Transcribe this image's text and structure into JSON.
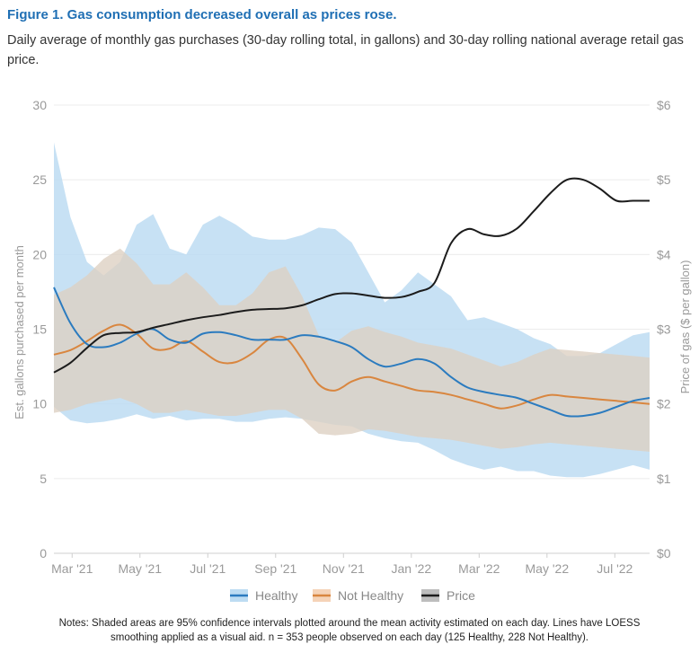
{
  "header": {
    "title": "Figure 1. Gas consumption decreased overall as prices rose.",
    "subtitle": "Daily average of monthly gas purchases (30-day rolling total, in gallons) and 30-day rolling national average retail gas price."
  },
  "notes": {
    "line1": "Notes: Shaded areas are 95% confidence intervals plotted around the mean activity estimated on each day. Lines have LOESS",
    "line2": "smoothing applied as a visual aid. n = 353 people observed on each day (125 Healthy, 228 Not Healthy)."
  },
  "chart_data": {
    "type": "line",
    "title": "Figure 1. Gas consumption decreased overall as prices rose.",
    "ylabel": "Est. gallons purchased per month",
    "y2label": "Price of gas ($ per gallon)",
    "ylim": [
      0,
      30
    ],
    "y2lim": [
      0,
      6
    ],
    "yticks": [
      "0",
      "5",
      "10",
      "15",
      "20",
      "25",
      "30"
    ],
    "y2ticks": [
      "$0",
      "$1",
      "$2",
      "$3",
      "$4",
      "$5",
      "$6"
    ],
    "xticks": [
      "Mar '21",
      "May '21",
      "Jul '21",
      "Sep '21",
      "Nov '21",
      "Jan '22",
      "Mar '22",
      "May '22",
      "Jul '22"
    ],
    "x_range_months": [
      0,
      18
    ],
    "grid": "horizontal",
    "legend_position": "bottom",
    "colors": {
      "healthy": "#2b7bbf",
      "not_healthy": "#d9863f",
      "price": "#1c1c1c",
      "healthy_band": "#bddcf2",
      "not_healthy_band": "#f5d3b8",
      "overlap_band": "#d2cfc8"
    },
    "series": [
      {
        "name": "Healthy",
        "axis": "left",
        "x": [
          0,
          0.5,
          1,
          1.5,
          2,
          2.5,
          3,
          3.5,
          4,
          4.5,
          5,
          5.5,
          6,
          6.5,
          7,
          7.5,
          8,
          8.5,
          9,
          9.5,
          10,
          10.5,
          11,
          11.5,
          12,
          12.5,
          13,
          13.5,
          14,
          14.5,
          15,
          15.5,
          16,
          16.5,
          17,
          17.5,
          18
        ],
        "values": [
          17.8,
          15.4,
          14.0,
          13.8,
          14.1,
          14.7,
          15.0,
          14.3,
          14.1,
          14.7,
          14.8,
          14.6,
          14.3,
          14.3,
          14.3,
          14.6,
          14.5,
          14.2,
          13.8,
          13.0,
          12.5,
          12.7,
          13.0,
          12.7,
          11.8,
          11.1,
          10.8,
          10.6,
          10.4,
          10.0,
          9.6,
          9.2,
          9.2,
          9.4,
          9.8,
          10.2,
          10.4
        ],
        "ci_lower": [
          9.8,
          8.9,
          8.7,
          8.8,
          9.0,
          9.3,
          9.0,
          9.2,
          8.9,
          9.0,
          9.0,
          8.8,
          8.8,
          9.0,
          9.1,
          9.0,
          8.8,
          8.6,
          8.5,
          8.0,
          7.7,
          7.5,
          7.4,
          6.9,
          6.3,
          5.9,
          5.6,
          5.8,
          5.5,
          5.5,
          5.2,
          5.1,
          5.1,
          5.3,
          5.6,
          5.9,
          5.6
        ],
        "ci_upper": [
          27.5,
          22.5,
          19.5,
          18.6,
          19.5,
          22.0,
          22.7,
          20.4,
          20.0,
          22.0,
          22.6,
          22.0,
          21.2,
          21.0,
          21.0,
          21.3,
          21.8,
          21.7,
          20.8,
          18.8,
          16.8,
          17.6,
          18.8,
          18.0,
          17.2,
          15.6,
          15.8,
          15.4,
          15.0,
          14.4,
          14.0,
          13.2,
          13.2,
          13.4,
          14.0,
          14.6,
          14.8
        ]
      },
      {
        "name": "Not Healthy",
        "axis": "left",
        "x": [
          0,
          0.5,
          1,
          1.5,
          2,
          2.5,
          3,
          3.5,
          4,
          4.5,
          5,
          5.5,
          6,
          6.5,
          7,
          7.5,
          8,
          8.5,
          9,
          9.5,
          10,
          10.5,
          11,
          11.5,
          12,
          12.5,
          13,
          13.5,
          14,
          14.5,
          15,
          15.5,
          16,
          16.5,
          17,
          17.5,
          18
        ],
        "values": [
          13.3,
          13.6,
          14.2,
          14.9,
          15.3,
          14.7,
          13.7,
          13.7,
          14.2,
          13.5,
          12.8,
          12.8,
          13.4,
          14.3,
          14.4,
          13.0,
          11.3,
          10.9,
          11.5,
          11.8,
          11.5,
          11.2,
          10.9,
          10.8,
          10.6,
          10.3,
          10.0,
          9.7,
          9.9,
          10.3,
          10.6,
          10.5,
          10.4,
          10.3,
          10.2,
          10.1,
          10.0
        ],
        "ci_lower": [
          9.4,
          9.6,
          10.0,
          10.2,
          10.4,
          10.0,
          9.4,
          9.4,
          9.6,
          9.4,
          9.2,
          9.2,
          9.4,
          9.6,
          9.6,
          9.0,
          8.0,
          7.9,
          8.0,
          8.3,
          8.2,
          8.0,
          7.8,
          7.7,
          7.6,
          7.4,
          7.2,
          7.0,
          7.1,
          7.3,
          7.4,
          7.3,
          7.2,
          7.1,
          7.0,
          6.9,
          6.8
        ],
        "ci_upper": [
          17.3,
          17.8,
          18.6,
          19.7,
          20.4,
          19.4,
          18.0,
          18.0,
          18.8,
          17.8,
          16.6,
          16.6,
          17.4,
          18.8,
          19.2,
          17.2,
          14.6,
          14.1,
          14.9,
          15.2,
          14.8,
          14.5,
          14.1,
          13.9,
          13.7,
          13.3,
          12.9,
          12.5,
          12.8,
          13.3,
          13.7,
          13.6,
          13.5,
          13.4,
          13.3,
          13.2,
          13.1
        ]
      },
      {
        "name": "Price",
        "axis": "right",
        "x": [
          0,
          0.5,
          1,
          1.5,
          2,
          2.5,
          3,
          3.5,
          4,
          4.5,
          5,
          5.5,
          6,
          6.5,
          7,
          7.5,
          8,
          8.5,
          9,
          9.5,
          10,
          10.5,
          11,
          11.5,
          12,
          12.5,
          13,
          13.5,
          14,
          14.5,
          15,
          15.5,
          16,
          16.5,
          17,
          17.5,
          18
        ],
        "values": [
          2.42,
          2.55,
          2.75,
          2.92,
          2.95,
          2.96,
          3.02,
          3.07,
          3.12,
          3.16,
          3.19,
          3.23,
          3.26,
          3.27,
          3.28,
          3.32,
          3.4,
          3.47,
          3.48,
          3.45,
          3.42,
          3.43,
          3.5,
          3.62,
          4.15,
          4.34,
          4.27,
          4.25,
          4.35,
          4.58,
          4.82,
          5.0,
          5.0,
          4.88,
          4.72,
          4.72,
          4.72
        ]
      }
    ]
  }
}
